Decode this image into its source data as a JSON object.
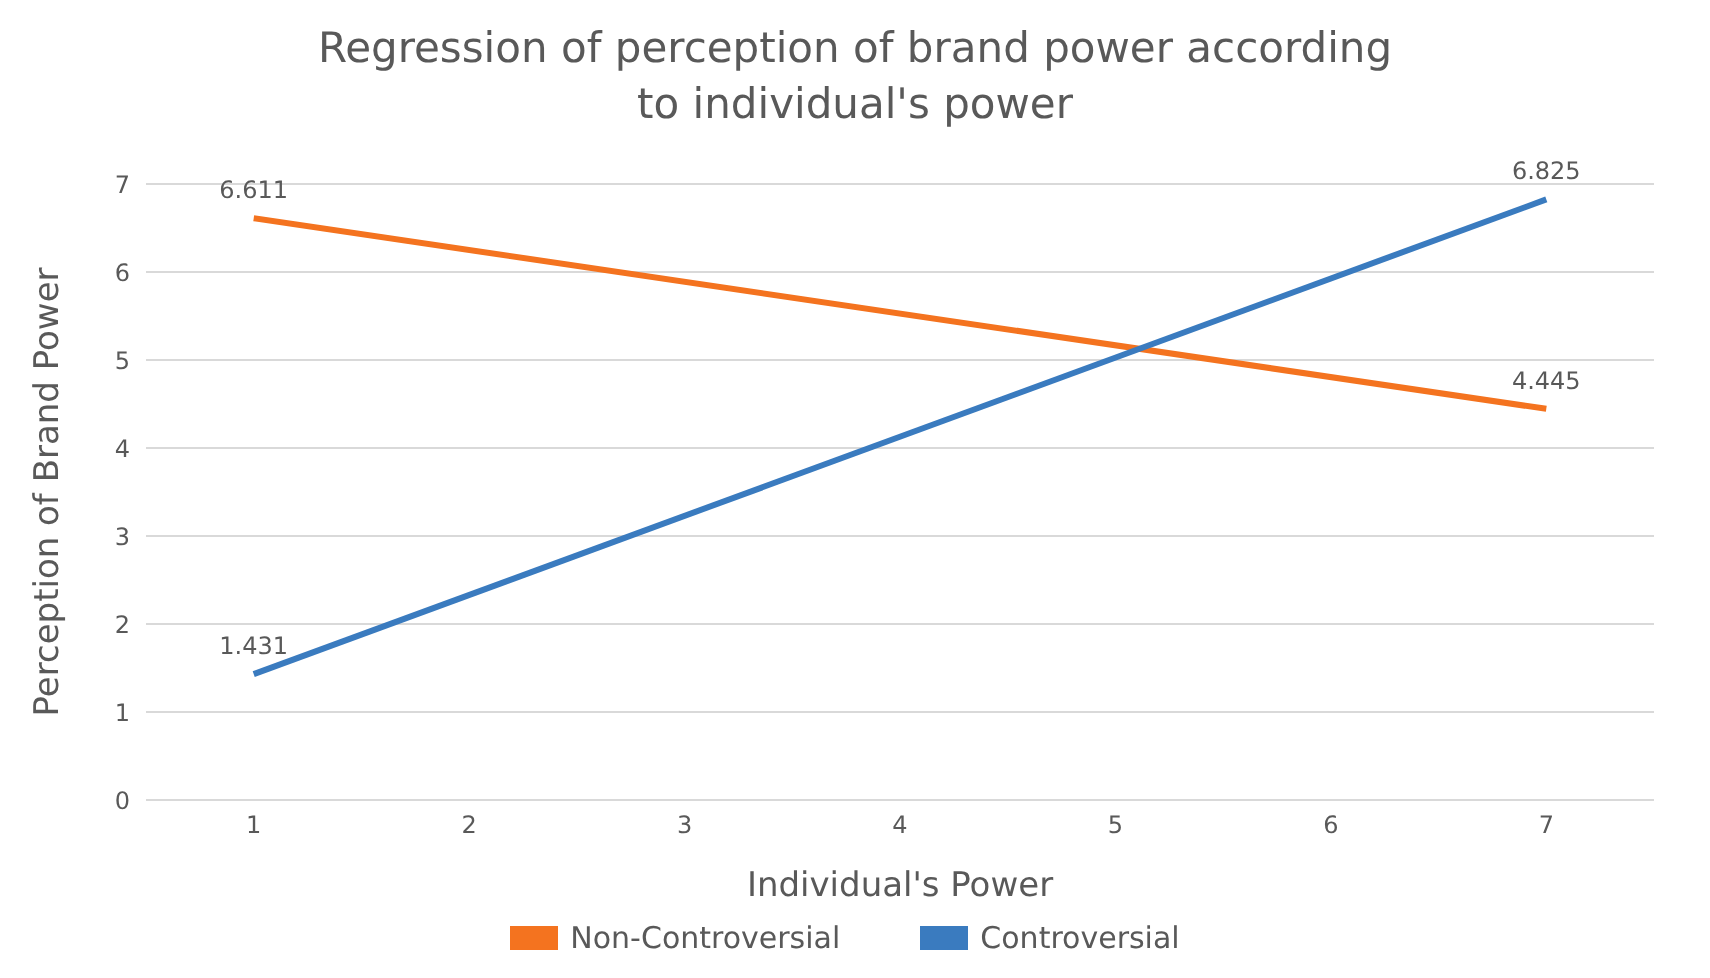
{
  "chart_data": {
    "type": "line",
    "title": "Regression of perception of brand power according to individual's power",
    "xlabel": "Individual's Power",
    "ylabel": "Perception of Brand Power",
    "x": [
      1,
      7
    ],
    "xlim": [
      0.5,
      7.5
    ],
    "xticks": [
      1,
      2,
      3,
      4,
      5,
      6,
      7
    ],
    "ylim": [
      0,
      7
    ],
    "yticks": [
      0,
      1,
      2,
      3,
      4,
      5,
      6,
      7
    ],
    "grid": "y",
    "legend": "bottom",
    "data_labels": true,
    "marker": "none",
    "line_style": "solid",
    "series": [
      {
        "name": "Non-Controversial",
        "color": "#f4731f",
        "values": [
          6.611,
          4.445
        ]
      },
      {
        "name": "Controversial",
        "color": "#3a7bbf",
        "values": [
          1.431,
          6.825
        ]
      }
    ]
  }
}
